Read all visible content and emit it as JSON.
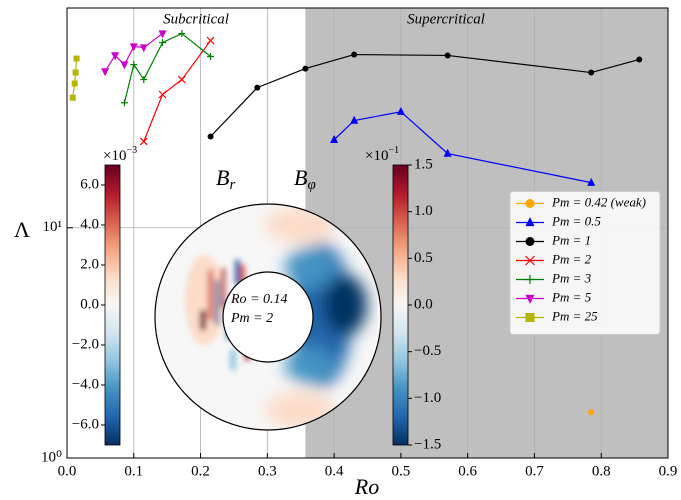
{
  "chart_data": {
    "type": "line",
    "x_label": "Ro",
    "y_label": "Λ",
    "xlim": [
      0,
      0.9
    ],
    "ylim": [
      1,
      90
    ],
    "log_y": true,
    "grid": true,
    "xticks": [
      {
        "value": 0,
        "label": "0.0"
      },
      0.1,
      0.2,
      0.3,
      0.4,
      0.5,
      0.6,
      0.7,
      0.8,
      0.9
    ],
    "yticks": [
      {
        "value": 1,
        "label": "10⁰"
      },
      {
        "value": 10,
        "label": "10¹"
      }
    ],
    "shaded_span": [
      0.357,
      0.9
    ],
    "shade_color": "#bfbfbf",
    "annotations": [
      "Subcritical",
      "Supercritical"
    ],
    "legend_loc": "center right",
    "series": [
      {
        "name": "Pm = 0.42 (weak)",
        "color": "#ffa500",
        "marker": "circle",
        "markersize": 3,
        "x": [
          0.785
        ],
        "values": [
          1.58
        ]
      },
      {
        "name": "Pm = 0.5",
        "color": "#0000ff",
        "marker": "triangle",
        "markersize": 4,
        "x": [
          0.4,
          0.43,
          0.5,
          0.57,
          0.785
        ],
        "values": [
          24.1,
          29.2,
          31.9,
          21.0,
          15.7
        ]
      },
      {
        "name": "Pm = 1",
        "color": "#000000",
        "marker": "circle",
        "markersize": 3,
        "x": [
          0.215,
          0.285,
          0.357,
          0.43,
          0.57,
          0.785,
          0.857
        ],
        "values": [
          24.9,
          40.6,
          49.1,
          56.5,
          56.0,
          47.2,
          53.8
        ]
      },
      {
        "name": "Pm = 2",
        "color": "#ff0000",
        "marker": "x",
        "markersize": 3.5,
        "x": [
          0.115,
          0.143,
          0.172,
          0.215
        ],
        "values": [
          23.7,
          37.9,
          44.0,
          65.0
        ]
      },
      {
        "name": "Pm = 3",
        "color": "#008000",
        "marker": "plus",
        "markersize": 3.5,
        "x": [
          0.086,
          0.1,
          0.115,
          0.143,
          0.172,
          0.215
        ],
        "values": [
          34.9,
          51.1,
          44.0,
          63.7,
          69.7,
          55.4
        ]
      },
      {
        "name": "Pm = 5",
        "color": "#cc00cc",
        "marker": "triangle-down",
        "markersize": 4,
        "x": [
          0.057,
          0.072,
          0.086,
          0.1,
          0.115,
          0.143
        ],
        "values": [
          47.7,
          56.0,
          51.1,
          61.2,
          60.6,
          69.7
        ]
      },
      {
        "name": "Pm = 25",
        "color": "#b5b500",
        "marker": "square",
        "markersize": 3,
        "x": [
          0.0086,
          0.0115,
          0.0129,
          0.0143
        ],
        "values": [
          36.7,
          42.3,
          47.2,
          54.3
        ]
      }
    ],
    "inset": {
      "colormap": [
        "#67001f",
        "#b2182b",
        "#d6604d",
        "#f4a582",
        "#fddbc7",
        "#f7f7f7",
        "#d1e5f0",
        "#92c5de",
        "#4393c3",
        "#2166ac",
        "#053061"
      ],
      "left_label": {
        "symbol": "B",
        "subscript": "r"
      },
      "right_label": {
        "symbol": "B",
        "subscript": "φ"
      },
      "texts": [
        "Ro = 0.14",
        "Pm = 2"
      ],
      "left_colorbar": {
        "lim": [
          -7,
          7
        ],
        "offset": {
          "base": "×10",
          "exponent": "−3"
        },
        "ticks": [
          {
            "value": 6,
            "label": "6.0"
          },
          {
            "value": 4,
            "label": "4.0"
          },
          {
            "value": 2,
            "label": "2.0"
          },
          {
            "value": 0,
            "label": "0.0"
          },
          {
            "value": -2,
            "label": "−2.0"
          },
          {
            "value": -4,
            "label": "−4.0"
          },
          {
            "value": -6,
            "label": "−6.0"
          }
        ]
      },
      "right_colorbar": {
        "lim": [
          -1.5,
          1.5
        ],
        "offset": {
          "base": "×10",
          "exponent": "−1"
        },
        "ticks": [
          1.5,
          {
            "value": 1,
            "label": "1.0"
          },
          0.5,
          {
            "value": 0,
            "label": "0.0"
          },
          {
            "value": -0.5,
            "label": "−0.5"
          },
          {
            "value": -1,
            "label": "−1.0"
          },
          {
            "value": -1.5,
            "label": "−1.5"
          }
        ]
      }
    }
  }
}
